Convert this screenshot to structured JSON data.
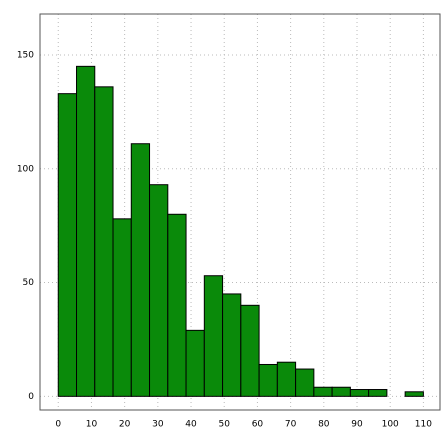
{
  "chart_data": {
    "type": "histogram",
    "bins": [
      0,
      5.5,
      11,
      16.5,
      22,
      27.5,
      33,
      38.5,
      44,
      49.5,
      55,
      60.5,
      66,
      71.5,
      77,
      82.5,
      88,
      93.5,
      99,
      104.5,
      110
    ],
    "values": [
      133,
      145,
      136,
      78,
      111,
      93,
      80,
      29,
      53,
      45,
      40,
      14,
      15,
      12,
      4,
      4,
      3,
      3,
      0,
      2
    ],
    "color": "#0a8a0a",
    "xlim": [
      -5.5,
      115
    ],
    "ylim": [
      -6,
      168
    ],
    "xticks": [
      0,
      10,
      20,
      30,
      40,
      50,
      60,
      70,
      80,
      90,
      100,
      110
    ],
    "yticks": [
      0,
      50,
      100,
      150
    ],
    "grid": true
  }
}
